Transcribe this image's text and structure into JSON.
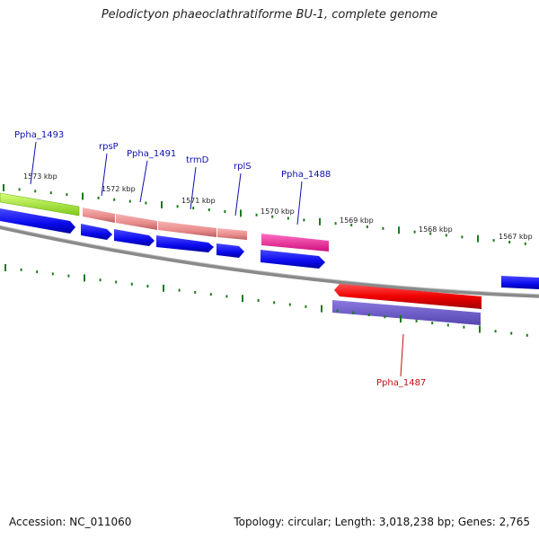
{
  "title": "Pelodictyon phaeoclathratiforme BU-1, complete genome",
  "footer": {
    "accession": "Accession: NC_011060",
    "summary": "Topology: circular; Length: 3,018,238 bp; Genes: 2,765"
  },
  "colors": {
    "backbone": "#7f7f7f",
    "tick": "#1e7a1e",
    "forward_label": "#1010b0",
    "reverse_label": "#c01010",
    "cds_blue": "#0a0aee"
  },
  "ticks": [
    {
      "label": "1573 kbp"
    },
    {
      "label": "1572 kbp"
    },
    {
      "label": "1571 kbp"
    },
    {
      "label": "1570 kbp"
    },
    {
      "label": "1569 kbp"
    },
    {
      "label": "1568 kbp"
    },
    {
      "label": "1567 kbp"
    }
  ],
  "gene_labels": [
    {
      "label": "Ppha_1493",
      "strand": "forward"
    },
    {
      "label": "rpsP",
      "strand": "forward"
    },
    {
      "label": "Ppha_1491",
      "strand": "forward"
    },
    {
      "label": "trmD",
      "strand": "forward"
    },
    {
      "label": "rplS",
      "strand": "forward"
    },
    {
      "label": "Ppha_1488",
      "strand": "forward"
    },
    {
      "label": "Ppha_1487",
      "strand": "reverse"
    }
  ]
}
